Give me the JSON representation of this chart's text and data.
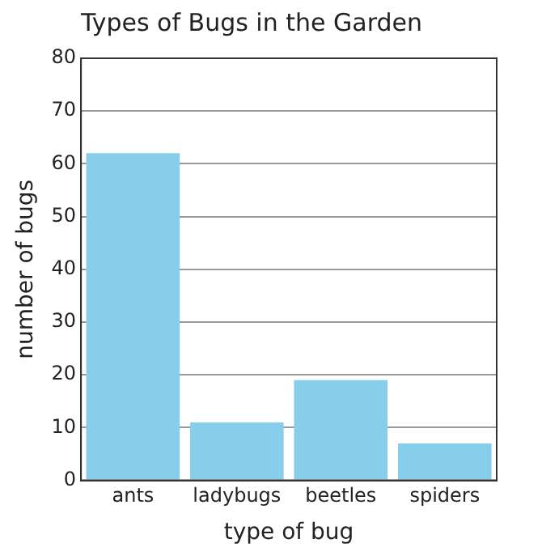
{
  "chart_data": {
    "type": "bar",
    "title": "Types of Bugs in the Garden",
    "xlabel": "type of bug",
    "ylabel": "number of bugs",
    "categories": [
      "ants",
      "ladybugs",
      "beetles",
      "spiders"
    ],
    "values": [
      62,
      11,
      19,
      7
    ],
    "color": "#87ceeb",
    "ylim": [
      0,
      80
    ],
    "yticks": [
      0,
      10,
      20,
      30,
      40,
      50,
      60,
      70,
      80
    ],
    "grid": "y"
  }
}
